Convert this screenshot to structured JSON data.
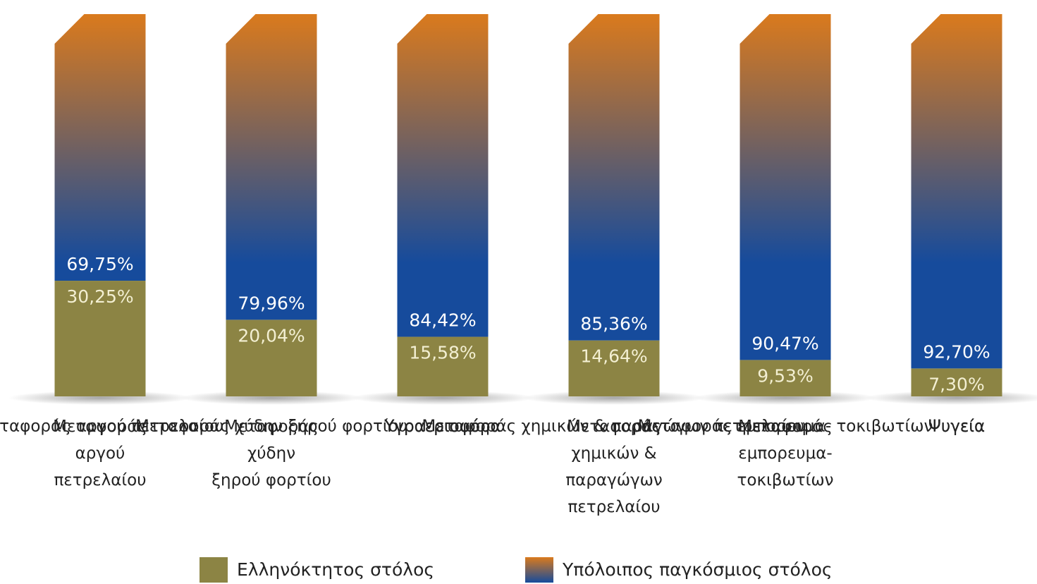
{
  "chart_data": {
    "type": "stacked_bar",
    "categories": [
      "Μεταφοράς\nαργού\nπετρελαίου",
      "Μεταφοράς\nχύδην\nξηρού φορτίου",
      "Υγραεριοφόρα",
      "Μεταφοράς\nχημικών &\nπαραγώγων\nπετρελαίου",
      "Μεταφοράς\nεμπορευμα-\nτοκιβωτίων",
      "Ψυγεία"
    ],
    "series": [
      {
        "name": "Ελληνόκτητος στόλος",
        "color": "#8c8444",
        "values": [
          30.25,
          20.04,
          15.58,
          14.64,
          9.53,
          7.3
        ],
        "value_labels": [
          "30,25%",
          "20,04%",
          "15,58%",
          "14,64%",
          "9,53%",
          "7,30%"
        ]
      },
      {
        "name": "Υπόλοιπος παγκόσμιος στόλος",
        "colors": [
          "#164b9c",
          "#da7a1d"
        ],
        "values": [
          69.75,
          79.96,
          84.42,
          85.36,
          90.47,
          92.7
        ],
        "value_labels": [
          "69,75%",
          "79,96%",
          "84,42%",
          "85,36%",
          "90,47%",
          "92,70%"
        ]
      }
    ],
    "ylim": [
      0,
      100
    ]
  }
}
